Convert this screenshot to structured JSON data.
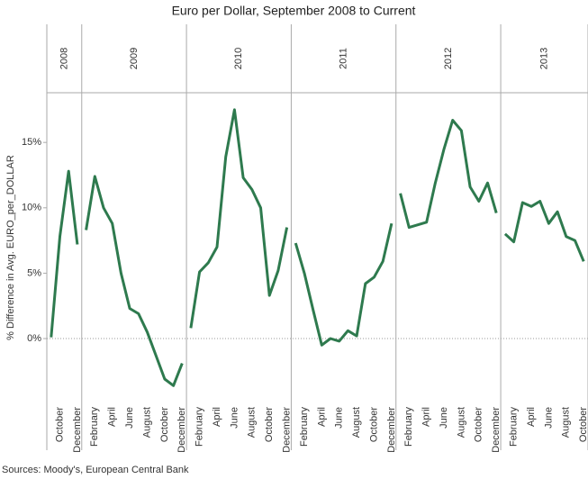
{
  "chart_data": {
    "type": "line",
    "title": "Euro per Dollar, September 2008 to Current",
    "y_label": "% Difference in Avg. EURO_per_DOLLAR",
    "source": "Sources: Moody's, European Central Bank",
    "color": "#2e7a4e",
    "ylim": [
      -4.75,
      18.8
    ],
    "yticks": [
      {
        "value": 0,
        "label": "0%"
      },
      {
        "value": 5,
        "label": "5%"
      },
      {
        "value": 10,
        "label": "10%"
      },
      {
        "value": 15,
        "label": "15%"
      }
    ],
    "panels": [
      {
        "year": "2008",
        "categories": [
          null,
          "October",
          null,
          "December"
        ],
        "values": [
          0.1,
          7.8,
          12.8,
          7.2
        ]
      },
      {
        "year": "2009",
        "categories": [
          null,
          "February",
          null,
          "April",
          null,
          "June",
          null,
          "August",
          null,
          "October",
          null,
          "December"
        ],
        "values": [
          8.3,
          12.4,
          10.0,
          8.8,
          5.0,
          2.3,
          1.9,
          0.5,
          -1.3,
          -3.1,
          -3.6,
          -1.9
        ]
      },
      {
        "year": "2010",
        "categories": [
          null,
          "February",
          null,
          "April",
          null,
          "June",
          null,
          "August",
          null,
          "October",
          null,
          "December"
        ],
        "values": [
          0.8,
          5.1,
          5.8,
          7.0,
          13.9,
          17.5,
          12.3,
          11.4,
          10.0,
          3.3,
          5.2,
          8.5
        ]
      },
      {
        "year": "2011",
        "categories": [
          null,
          "February",
          null,
          "April",
          null,
          "June",
          null,
          "August",
          null,
          "October",
          null,
          "December"
        ],
        "values": [
          7.3,
          5.0,
          2.2,
          -0.5,
          0.0,
          -0.2,
          0.6,
          0.2,
          4.2,
          4.7,
          5.9,
          8.8
        ]
      },
      {
        "year": "2012",
        "categories": [
          null,
          "February",
          null,
          "April",
          null,
          "June",
          null,
          "August",
          null,
          "October",
          null,
          "December"
        ],
        "values": [
          11.1,
          8.5,
          8.7,
          8.9,
          11.9,
          14.5,
          16.7,
          15.9,
          11.6,
          10.5,
          11.9,
          9.6
        ]
      },
      {
        "year": "2013",
        "categories": [
          null,
          "February",
          null,
          "April",
          null,
          "June",
          null,
          "August",
          null,
          "October"
        ],
        "values": [
          8.0,
          7.4,
          10.4,
          10.1,
          10.5,
          8.8,
          9.7,
          7.8,
          7.5,
          5.9
        ]
      }
    ]
  }
}
